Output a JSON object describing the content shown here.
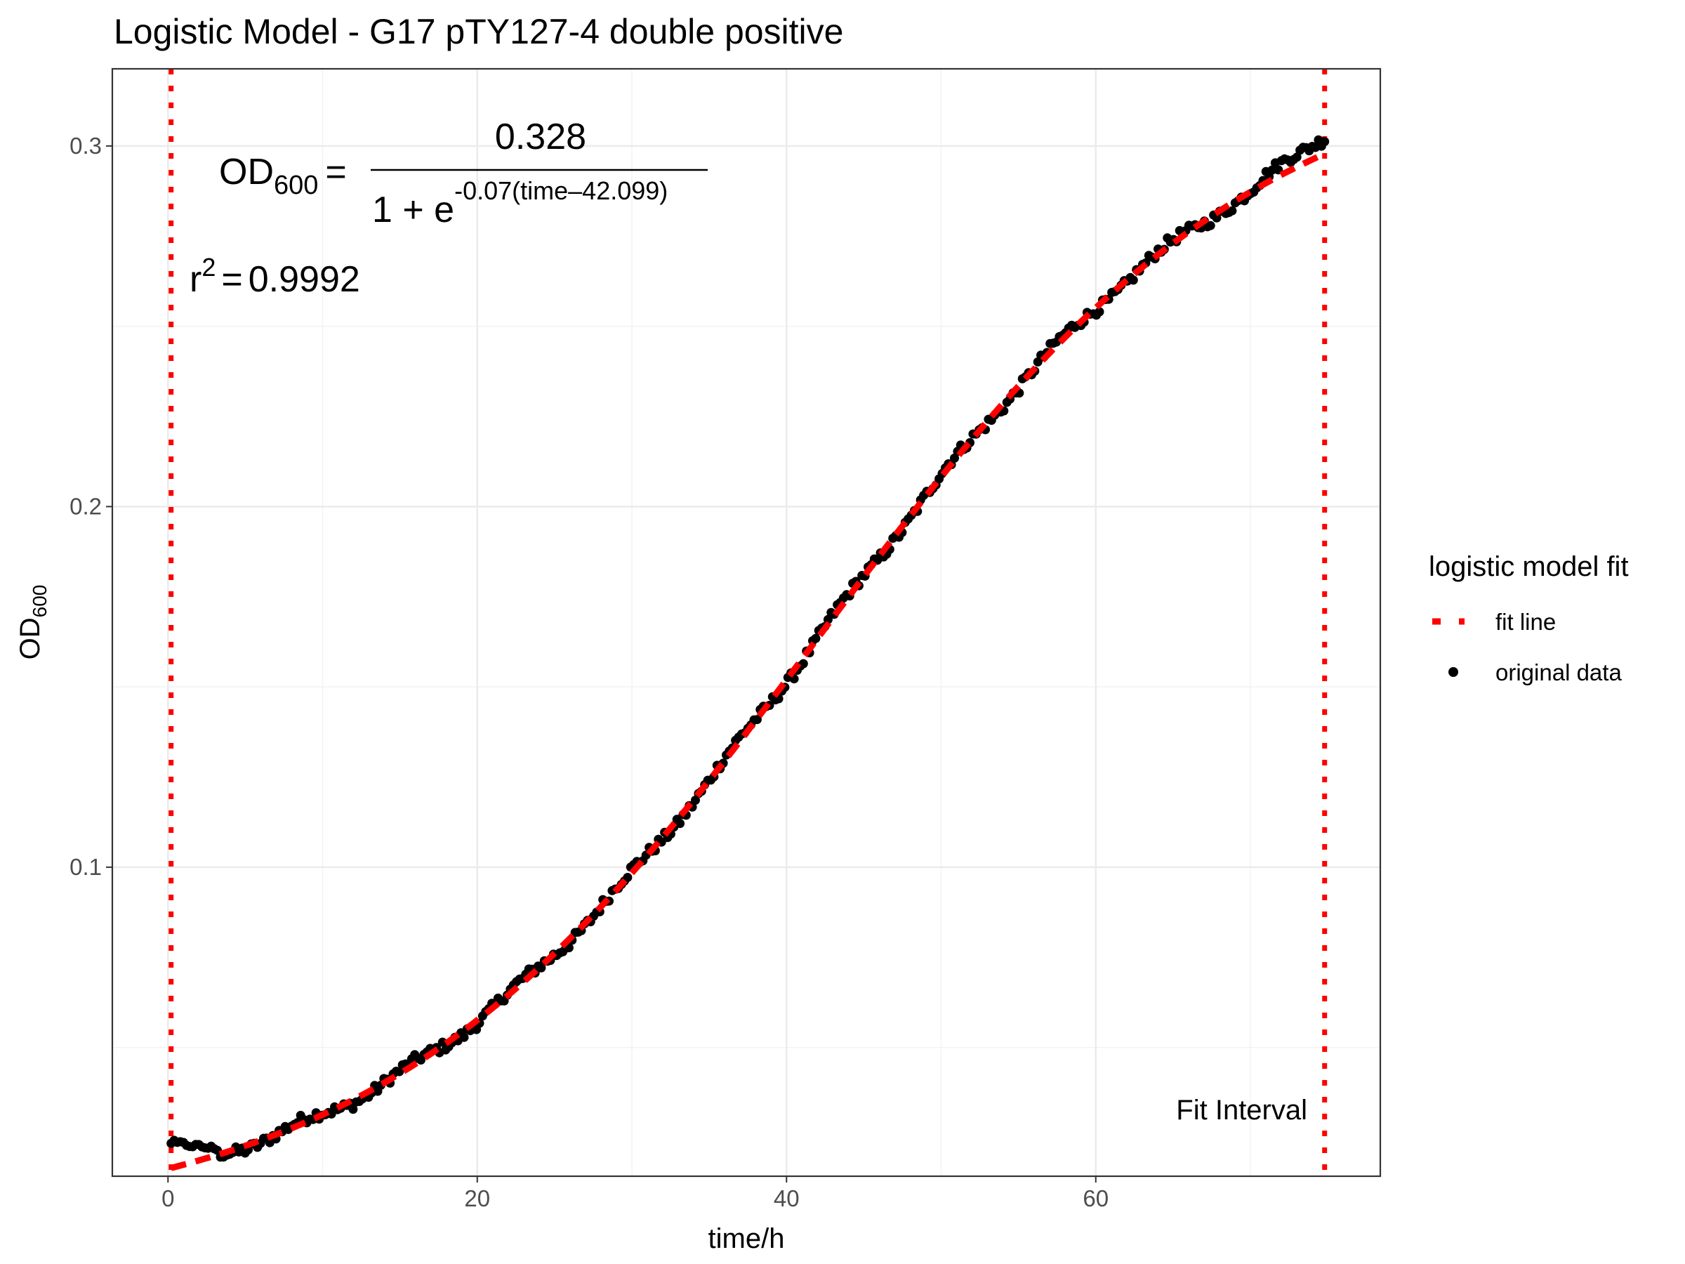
{
  "chart_data": {
    "type": "scatter",
    "title": "Logistic Model -  G17 pTY127-4 double positive",
    "xlabel": "time/h",
    "ylabel": {
      "main": "OD",
      "sub": "600"
    },
    "xlim": [
      -3.6,
      78.4
    ],
    "ylim": [
      0.0143,
      0.3214
    ],
    "x_ticks": [
      0,
      20,
      40,
      60
    ],
    "y_ticks": [
      0.1,
      0.2,
      0.3
    ],
    "x_tick_labels": [
      "0",
      "20",
      "40",
      "60"
    ],
    "y_tick_labels": [
      "0.1",
      "0.2",
      "0.3"
    ],
    "grid": true,
    "model": {
      "K": 0.328,
      "r": 0.07,
      "t0": 42.099
    },
    "equation": {
      "lhs": "OD",
      "lhs_sub": "600",
      "equals": "=",
      "numerator": "0.328",
      "denominator_base": "1 + e",
      "exponent": "-0.07(time–42.099)"
    },
    "r_squared": {
      "label": "r",
      "power": "2",
      "equals": "=",
      "value": "0.9992"
    },
    "fit_interval": {
      "start": 0.2,
      "end": 74.8,
      "label": "Fit Interval"
    },
    "series": [
      {
        "name": "fit line",
        "type": "line",
        "style": "dashed",
        "color": "#ff0000"
      },
      {
        "name": "original data",
        "type": "scatter",
        "color": "#000000",
        "x_range": [
          0.2,
          74.8
        ],
        "n_points": 375,
        "noise_amplitude": 0.0015,
        "first_points": [
          [
            0.2,
            0.0238
          ],
          [
            0.4,
            0.0246
          ],
          [
            0.6,
            0.0233
          ],
          [
            0.8,
            0.0228
          ]
        ],
        "last_points": [
          [
            73.8,
            0.3045
          ],
          [
            74.2,
            0.3028
          ],
          [
            74.6,
            0.3052
          ],
          [
            74.8,
            0.306
          ]
        ]
      }
    ],
    "legend": {
      "title": "logistic model fit",
      "position": "right",
      "items": [
        "fit line",
        "original data"
      ]
    }
  },
  "colors": {
    "fit": "#ff0000",
    "points": "#000000",
    "r2": "#8b0000",
    "grid": "#ebebeb",
    "panel_border": "#333333"
  }
}
